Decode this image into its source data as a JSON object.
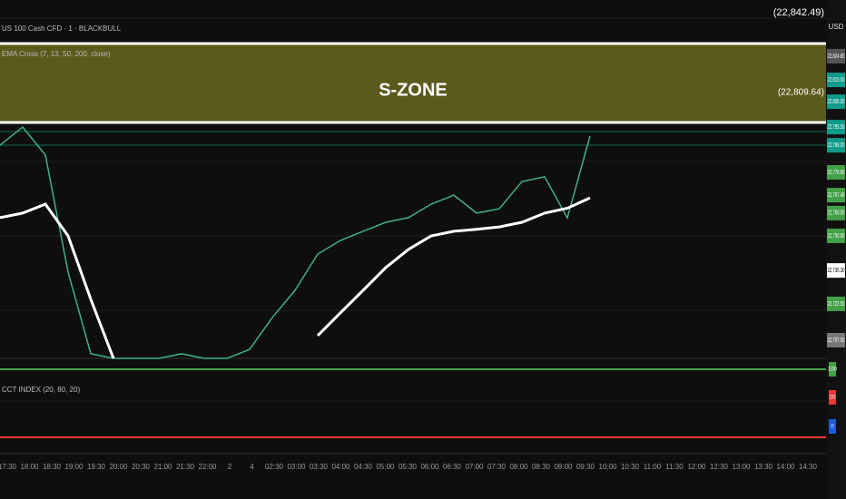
{
  "chart_data": {
    "type": "line",
    "symbol_title": "US 100 Cash CFD · 1 · BLACKBULL",
    "indicator_title": "EMA Cross (7, 13, 50, 200, close)",
    "zone_label": "S-ZONE",
    "zone_top": {
      "value": 22842.49,
      "label": "(22,842.49)"
    },
    "zone_bottom": {
      "value": 22809.64,
      "label": "(22,809.64)"
    },
    "currency": "USD",
    "ylim": [
      22700,
      22848
    ],
    "series": [
      {
        "name": "Price",
        "color": "#3fb27f",
        "values": [
          22788,
          22795.5,
          22784,
          22735.6,
          22701.9,
          22700,
          22700,
          22700,
          22701.9,
          22700,
          22700,
          22703.7,
          22716.9,
          22728.1,
          22743.1,
          22748.7,
          22752.5,
          22756.2,
          22758.1,
          22763.7,
          22767.4,
          22760,
          22761.8,
          22773,
          22775,
          22758,
          22791.8
        ]
      },
      {
        "name": "EMA 200",
        "color": "#ffffff",
        "values": [
          22758.1,
          22760,
          22763.7,
          22750.6,
          22724.4,
          22700,
          null,
          null,
          null,
          null,
          null,
          null,
          null,
          null,
          22709.4,
          22718.8,
          22728.1,
          22737.5,
          22745,
          22750.6,
          22752.5,
          22753.3,
          22754.3,
          22756.2,
          22760,
          22762,
          22766.3
        ]
      }
    ],
    "price_labels": [
      {
        "value": 22824.8,
        "label": "22,824.80",
        "color": "#555555"
      },
      {
        "value": 22815.0,
        "label": "22,815.00",
        "color": "#0f9a8a"
      },
      {
        "value": 22806.0,
        "label": "22,806.00",
        "color": "#0f9a8a"
      },
      {
        "value": 22795.5,
        "label": "22,795.50",
        "color": "#0f9a8a"
      },
      {
        "value": 22788.0,
        "label": "22,788.00",
        "color": "#0f9a8a"
      },
      {
        "value": 22776.8,
        "label": "22,776.80",
        "color": "#43a047"
      },
      {
        "value": 22767.4,
        "label": "22,767.40",
        "color": "#43a047"
      },
      {
        "value": 22760.0,
        "label": "22,760.00",
        "color": "#43a047"
      },
      {
        "value": 22750.6,
        "label": "22,750.60",
        "color": "#43a047"
      },
      {
        "value": 22736.3,
        "label": "22,736.30",
        "color": "#ffffff"
      },
      {
        "value": 22722.5,
        "label": "22,722.50",
        "color": "#43a047"
      },
      {
        "value": 22707.5,
        "label": "22,707.50",
        "color": "#777777"
      }
    ],
    "sub_indicator_title": "CCT INDEX (20, 80, 20)",
    "sub_labels": [
      {
        "label": "100",
        "color": "#43a047"
      },
      {
        "label": "20",
        "color": "#e53935"
      },
      {
        "label": "0",
        "color": "#1e5bd8"
      }
    ],
    "time_labels": [
      "17:30",
      "18:00",
      "18:30",
      "19:00",
      "19:30",
      "20:00",
      "20:30",
      "21:00",
      "21:30",
      "22:00",
      "2",
      "4",
      "02:30",
      "03:00",
      "03:30",
      "04:00",
      "04:30",
      "05:00",
      "05:30",
      "06:00",
      "06:30",
      "07:00",
      "07:30",
      "08:00",
      "08:30",
      "09:00",
      "09:30",
      "10:00",
      "10:30",
      "11:00",
      "11:30",
      "12:00",
      "12:30",
      "13:00",
      "13:30",
      "14:00",
      "14:30"
    ]
  }
}
